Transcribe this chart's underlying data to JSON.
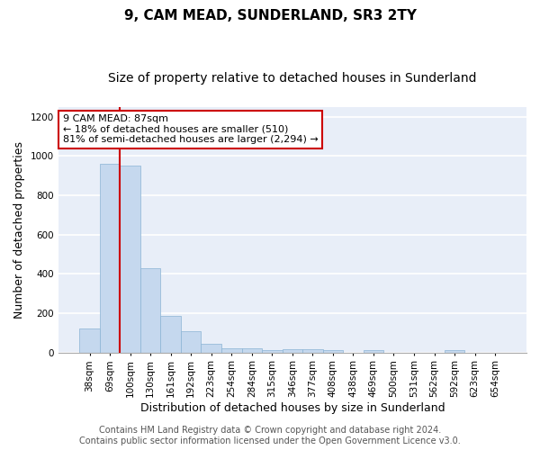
{
  "title": "9, CAM MEAD, SUNDERLAND, SR3 2TY",
  "subtitle": "Size of property relative to detached houses in Sunderland",
  "xlabel": "Distribution of detached houses by size in Sunderland",
  "ylabel": "Number of detached properties",
  "categories": [
    "38sqm",
    "69sqm",
    "100sqm",
    "130sqm",
    "161sqm",
    "192sqm",
    "223sqm",
    "254sqm",
    "284sqm",
    "315sqm",
    "346sqm",
    "377sqm",
    "408sqm",
    "438sqm",
    "469sqm",
    "500sqm",
    "531sqm",
    "562sqm",
    "592sqm",
    "623sqm",
    "654sqm"
  ],
  "values": [
    120,
    960,
    950,
    430,
    185,
    110,
    45,
    20,
    20,
    10,
    15,
    15,
    10,
    0,
    10,
    0,
    0,
    0,
    10,
    0,
    0
  ],
  "bar_color": "#c5d8ee",
  "bar_edge_color": "#8ab4d4",
  "ylim": [
    0,
    1250
  ],
  "yticks": [
    0,
    200,
    400,
    600,
    800,
    1000,
    1200
  ],
  "property_line_index": 1.5,
  "annotation_title": "9 CAM MEAD: 87sqm",
  "annotation_line1": "← 18% of detached houses are smaller (510)",
  "annotation_line2": "81% of semi-detached houses are larger (2,294) →",
  "annotation_box_color": "#ffffff",
  "annotation_box_edge": "#cc0000",
  "property_line_color": "#cc0000",
  "footer_line1": "Contains HM Land Registry data © Crown copyright and database right 2024.",
  "footer_line2": "Contains public sector information licensed under the Open Government Licence v3.0.",
  "plot_bg_color": "#e8eef8",
  "fig_bg_color": "#ffffff",
  "grid_color": "#ffffff",
  "title_fontsize": 11,
  "subtitle_fontsize": 10,
  "ylabel_fontsize": 9,
  "xlabel_fontsize": 9,
  "tick_fontsize": 7.5,
  "annotation_fontsize": 8,
  "footer_fontsize": 7
}
